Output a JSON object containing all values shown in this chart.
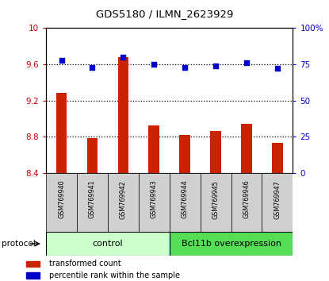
{
  "title": "GDS5180 / ILMN_2623929",
  "samples": [
    "GSM769940",
    "GSM769941",
    "GSM769942",
    "GSM769943",
    "GSM769944",
    "GSM769945",
    "GSM769946",
    "GSM769947"
  ],
  "transformed_counts": [
    9.28,
    8.78,
    9.68,
    8.92,
    8.82,
    8.86,
    8.94,
    8.73
  ],
  "percentile_ranks": [
    78,
    73,
    80,
    75,
    73,
    74,
    76,
    72
  ],
  "ylim_left": [
    8.4,
    10.0
  ],
  "ylim_right": [
    0,
    100
  ],
  "yticks_left": [
    8.4,
    8.8,
    9.2,
    9.6,
    10.0
  ],
  "ytick_labels_left": [
    "8.4",
    "8.8",
    "9.2",
    "9.6",
    "10"
  ],
  "yticks_right": [
    0,
    25,
    50,
    75,
    100
  ],
  "ytick_labels_right": [
    "0",
    "25",
    "50",
    "75",
    "100%"
  ],
  "hlines": [
    8.8,
    9.2,
    9.6
  ],
  "bar_color": "#cc2200",
  "dot_color": "#0000cc",
  "control_label": "control",
  "treatment_label": "Bcl11b overexpression",
  "control_color": "#ccffcc",
  "treatment_color": "#55dd55",
  "protocol_label": "protocol",
  "legend_bar_label": "transformed count",
  "legend_dot_label": "percentile rank within the sample",
  "n_control": 4,
  "n_treatment": 4,
  "bar_bottom": 8.4,
  "tick_label_color_left": "#cc0000",
  "tick_label_color_right": "#0000cc",
  "sample_box_color": "#d0d0d0",
  "spine_color": "#000000"
}
